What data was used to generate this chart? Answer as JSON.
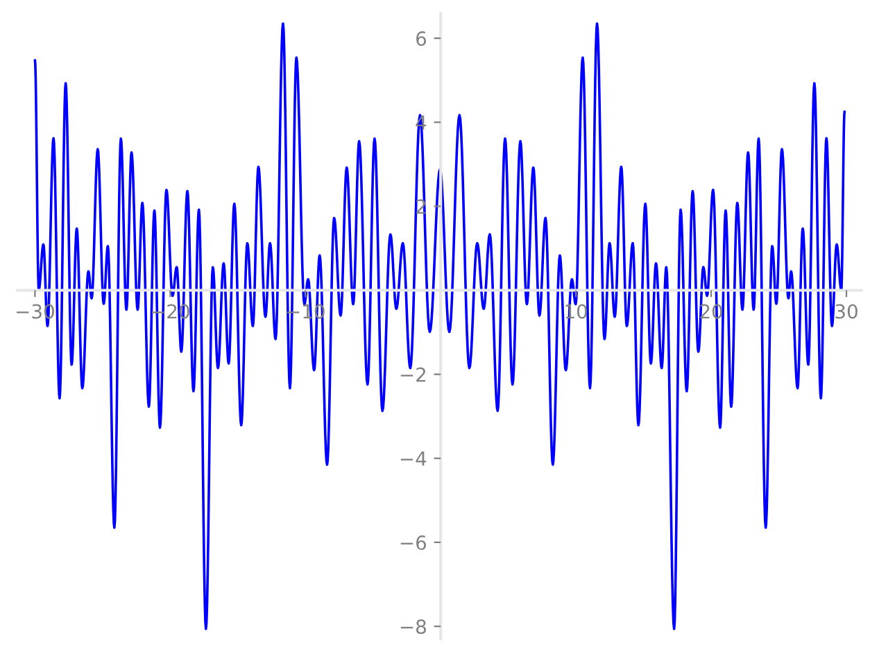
{
  "chart_data": {
    "type": "line",
    "xlim": [
      -31.3,
      31.1
    ],
    "ylim": [
      -8.3,
      6.6
    ],
    "xticks": [
      -30,
      -20,
      -10,
      10,
      20,
      30
    ],
    "yticks": [
      -8,
      -6,
      -4,
      -2,
      2,
      4,
      6
    ],
    "grid": false,
    "legend": false,
    "marker": "none",
    "line_style": "solid",
    "series": [
      {
        "color": "#0000ff",
        "x": [
          -30.0,
          -29.72,
          -29.38,
          -29.07,
          -28.63,
          -28.18,
          -27.73,
          -27.29,
          -26.91,
          -26.5,
          -26.05,
          -25.81,
          -25.36,
          -24.92,
          -24.61,
          -24.13,
          -23.65,
          -23.24,
          -22.86,
          -22.41,
          -22.06,
          -21.58,
          -21.17,
          -20.76,
          -20.28,
          -19.83,
          -19.52,
          -19.18,
          -18.73,
          -18.28,
          -17.88,
          -17.36,
          -16.85,
          -16.47,
          -16.05,
          -15.68,
          -15.26,
          -14.75,
          -14.3,
          -13.89,
          -13.48,
          -12.96,
          -12.62,
          -12.21,
          -11.66,
          -11.15,
          -10.67,
          -10.08,
          -9.8,
          -9.36,
          -8.95,
          -8.4,
          -7.88,
          -7.4,
          -6.95,
          -6.47,
          -6.03,
          -5.41,
          -4.89,
          -4.31,
          -3.72,
          -3.28,
          -2.8,
          -2.25,
          -1.53,
          -0.81,
          -0.05,
          0.64,
          1.39,
          2.12,
          2.7,
          3.18,
          3.63,
          4.21,
          4.76,
          5.31,
          5.89,
          6.37,
          6.85,
          7.3,
          7.75,
          8.29,
          8.81,
          9.25,
          9.7,
          9.98,
          10.5,
          11.04,
          11.56,
          12.11,
          12.49,
          12.87,
          13.35,
          13.76,
          14.2,
          14.62,
          15.13,
          15.54,
          15.92,
          16.34,
          16.68,
          17.26,
          17.74,
          18.19,
          18.63,
          19.05,
          19.42,
          19.7,
          20.14,
          20.66,
          21.07,
          21.48,
          21.93,
          22.31,
          22.73,
          23.14,
          23.51,
          24.03,
          24.51,
          24.82,
          25.23,
          25.71,
          25.91,
          26.39,
          26.77,
          27.18,
          27.63,
          28.11,
          28.52,
          28.93,
          29.28,
          29.62,
          29.86
        ],
        "values": [
          5.47,
          0.01,
          1.09,
          -0.85,
          3.62,
          -2.57,
          4.93,
          -1.77,
          1.47,
          -2.33,
          0.45,
          -0.19,
          3.36,
          -0.32,
          1.05,
          -5.65,
          3.61,
          -0.46,
          3.28,
          -0.46,
          2.08,
          -2.77,
          1.9,
          -3.27,
          2.39,
          -0.13,
          0.55,
          -1.46,
          2.36,
          -2.4,
          1.92,
          -8.06,
          0.55,
          -1.85,
          0.64,
          -1.74,
          2.06,
          -3.21,
          1.12,
          -0.85,
          2.94,
          -0.63,
          1.12,
          -1.16,
          6.35,
          -2.33,
          5.54,
          -0.33,
          0.26,
          -1.9,
          0.83,
          -4.15,
          1.72,
          -0.6,
          2.92,
          -0.33,
          3.55,
          -2.24,
          3.61,
          -2.87,
          1.33,
          -0.44,
          1.12,
          -1.85,
          4.17,
          -0.99,
          2.88,
          -0.99,
          4.17,
          -1.85,
          1.12,
          -0.44,
          1.33,
          -2.87,
          3.61,
          -2.24,
          3.55,
          -0.33,
          2.92,
          -0.6,
          1.72,
          -4.15,
          0.83,
          -1.9,
          0.26,
          -0.33,
          5.54,
          -2.33,
          6.35,
          -1.16,
          1.12,
          -0.63,
          2.94,
          -0.85,
          1.12,
          -3.21,
          2.06,
          -1.74,
          0.64,
          -1.85,
          0.55,
          -8.06,
          1.92,
          -2.4,
          2.36,
          -1.46,
          0.55,
          -0.13,
          2.39,
          -3.27,
          1.9,
          -2.77,
          2.08,
          -0.46,
          3.28,
          -0.46,
          3.61,
          -5.65,
          1.05,
          -0.32,
          3.36,
          -0.19,
          0.45,
          -2.33,
          1.47,
          -1.77,
          4.93,
          -2.57,
          3.62,
          -0.85,
          1.09,
          0.01,
          4.25
        ]
      }
    ]
  }
}
